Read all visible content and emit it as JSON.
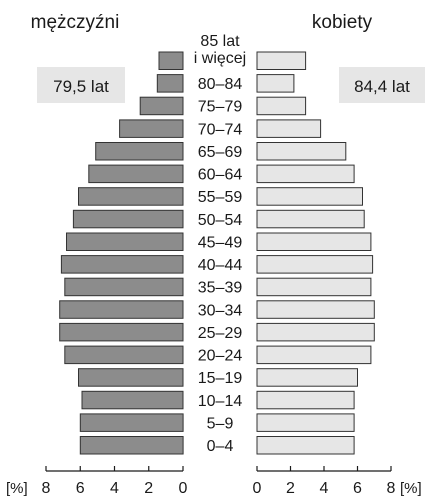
{
  "chart_data": {
    "type": "bar",
    "orientation": "horizontal",
    "layout": "population-pyramid",
    "categories": [
      "85 lat\ni więcej",
      "80–84",
      "75–79",
      "70–74",
      "65–69",
      "60–64",
      "55–59",
      "50–54",
      "45–49",
      "40–44",
      "35–39",
      "30–34",
      "25–29",
      "20–24",
      "15–19",
      "10–14",
      "5–9",
      "0–4"
    ],
    "series": [
      {
        "name": "mężczyźni",
        "side": "left",
        "color": "#8c8c8c",
        "values": [
          1.4,
          1.5,
          2.5,
          3.7,
          5.1,
          5.5,
          6.1,
          6.4,
          6.8,
          7.1,
          6.9,
          7.2,
          7.2,
          6.9,
          6.1,
          5.9,
          6.0,
          6.0
        ]
      },
      {
        "name": "kobiety",
        "side": "right",
        "color": "#e6e6e6",
        "values": [
          2.9,
          2.2,
          2.9,
          3.8,
          5.3,
          5.8,
          6.3,
          6.4,
          6.8,
          6.9,
          6.8,
          7.0,
          7.0,
          6.8,
          6.0,
          5.8,
          5.8,
          5.8
        ]
      }
    ],
    "annotations": [
      {
        "series": "mężczyźni",
        "text": "79,5 lat"
      },
      {
        "series": "kobiety",
        "text": "84,4 lat"
      }
    ],
    "unit": "[%]",
    "xlim": [
      0,
      8
    ],
    "xticks": [
      8,
      6,
      4,
      2,
      0
    ]
  }
}
